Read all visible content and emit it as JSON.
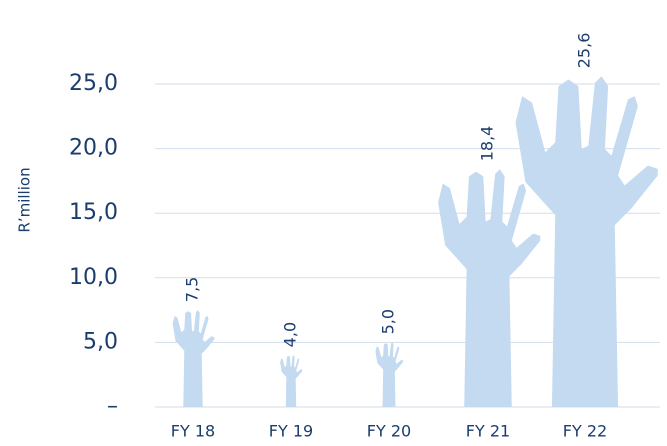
{
  "chart_data": {
    "type": "hand-bar",
    "y_label": "R’million",
    "categories": [
      "FY 18",
      "FY 19",
      "FY 20",
      "FY 21",
      "FY 22"
    ],
    "values": [
      7.5,
      4.0,
      5.0,
      18.4,
      25.6
    ],
    "value_labels": [
      "7,5",
      "4,0",
      "5,0",
      "18,4",
      "25,6"
    ],
    "color": "#c3daf1",
    "ylim": [
      0,
      30
    ],
    "yticks": [
      {
        "value": 0,
        "label": "–"
      },
      {
        "value": 5,
        "label": "5,0"
      },
      {
        "value": 10,
        "label": "10,0"
      },
      {
        "value": 15,
        "label": "15,0"
      },
      {
        "value": 20,
        "label": "20,0"
      },
      {
        "value": 25,
        "label": "25,0"
      }
    ],
    "grid": true
  }
}
